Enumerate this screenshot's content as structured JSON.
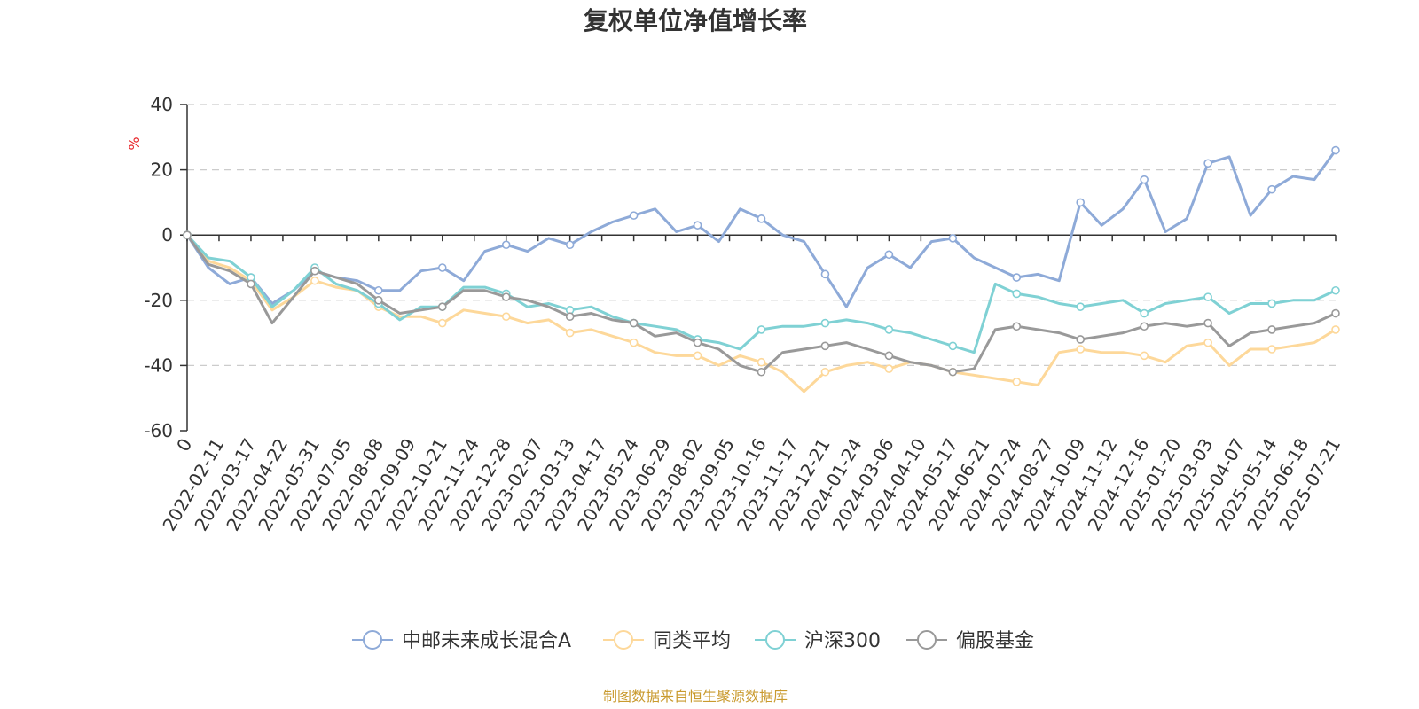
{
  "chart_data": {
    "type": "line",
    "title": "复权单位净值增长率",
    "ylabel": "%",
    "ylim": [
      -60,
      40
    ],
    "yticks": [
      -60,
      -40,
      -20,
      0,
      20,
      40
    ],
    "grid": true,
    "legend_position": "bottom-center",
    "source": "制图数据来自恒生聚源数据库",
    "x_tick_labels": [
      "0",
      "2022-02-11",
      "2022-03-17",
      "2022-04-22",
      "2022-05-31",
      "2022-07-05",
      "2022-08-08",
      "2022-09-09",
      "2022-10-21",
      "2022-11-24",
      "2022-12-28",
      "2023-02-07",
      "2023-03-13",
      "2023-04-17",
      "2023-05-24",
      "2023-06-29",
      "2023-08-02",
      "2023-09-05",
      "2023-10-16",
      "2023-11-17",
      "2023-12-21",
      "2024-01-24",
      "2024-03-06",
      "2024-04-10",
      "2024-05-17",
      "2024-06-21",
      "2024-07-24",
      "2024-08-27",
      "2024-10-09",
      "2024-11-12",
      "2024-12-16",
      "2025-01-20",
      "2025-03-03",
      "2025-04-07",
      "2025-05-14",
      "2025-06-18",
      "2025-07-21"
    ],
    "series": [
      {
        "name": "中邮未来成长混合A",
        "color": "#8eaad8",
        "values": [
          0,
          -10,
          -15,
          -13,
          -21,
          -17,
          -11,
          -13,
          -14,
          -17,
          -17,
          -11,
          -10,
          -14,
          -5,
          -3,
          -5,
          -1,
          -3,
          1,
          4,
          6,
          8,
          1,
          3,
          -2,
          8,
          5,
          0,
          -2,
          -12,
          -22,
          -10,
          -6,
          -10,
          -2,
          -1,
          -7,
          -10,
          -13,
          -12,
          -14,
          10,
          3,
          8,
          17,
          1,
          5,
          22,
          24,
          6,
          14,
          18,
          17,
          26
        ]
      },
      {
        "name": "同类平均",
        "color": "#fdd89a",
        "values": [
          0,
          -8,
          -10,
          -14,
          -23,
          -19,
          -14,
          -16,
          -17,
          -22,
          -25,
          -25,
          -27,
          -23,
          -24,
          -25,
          -27,
          -26,
          -30,
          -29,
          -31,
          -33,
          -36,
          -37,
          -37,
          -40,
          -37,
          -39,
          -42,
          -48,
          -42,
          -40,
          -39,
          -41,
          -39,
          -40,
          -42,
          -43,
          -44,
          -45,
          -46,
          -36,
          -35,
          -36,
          -36,
          -37,
          -39,
          -34,
          -33,
          -40,
          -35,
          -35,
          -34,
          -33,
          -29
        ]
      },
      {
        "name": "沪深300",
        "color": "#7fd1d4",
        "values": [
          0,
          -7,
          -8,
          -13,
          -22,
          -17,
          -10,
          -15,
          -17,
          -21,
          -26,
          -22,
          -22,
          -16,
          -16,
          -18,
          -22,
          -21,
          -23,
          -22,
          -25,
          -27,
          -28,
          -29,
          -32,
          -33,
          -35,
          -29,
          -28,
          -28,
          -27,
          -26,
          -27,
          -29,
          -30,
          -32,
          -34,
          -36,
          -15,
          -18,
          -19,
          -21,
          -22,
          -21,
          -20,
          -24,
          -21,
          -20,
          -19,
          -24,
          -21,
          -21,
          -20,
          -20,
          -17
        ]
      },
      {
        "name": "偏股基金",
        "color": "#999999",
        "values": [
          0,
          -9,
          -11,
          -15,
          -27,
          -19,
          -11,
          -13,
          -15,
          -20,
          -24,
          -23,
          -22,
          -17,
          -17,
          -19,
          -20,
          -22,
          -25,
          -24,
          -26,
          -27,
          -31,
          -30,
          -33,
          -35,
          -40,
          -42,
          -36,
          -35,
          -34,
          -33,
          -35,
          -37,
          -39,
          -40,
          -42,
          -41,
          -29,
          -28,
          -29,
          -30,
          -32,
          -31,
          -30,
          -28,
          -27,
          -28,
          -27,
          -34,
          -30,
          -29,
          -28,
          -27,
          -24
        ]
      }
    ]
  }
}
